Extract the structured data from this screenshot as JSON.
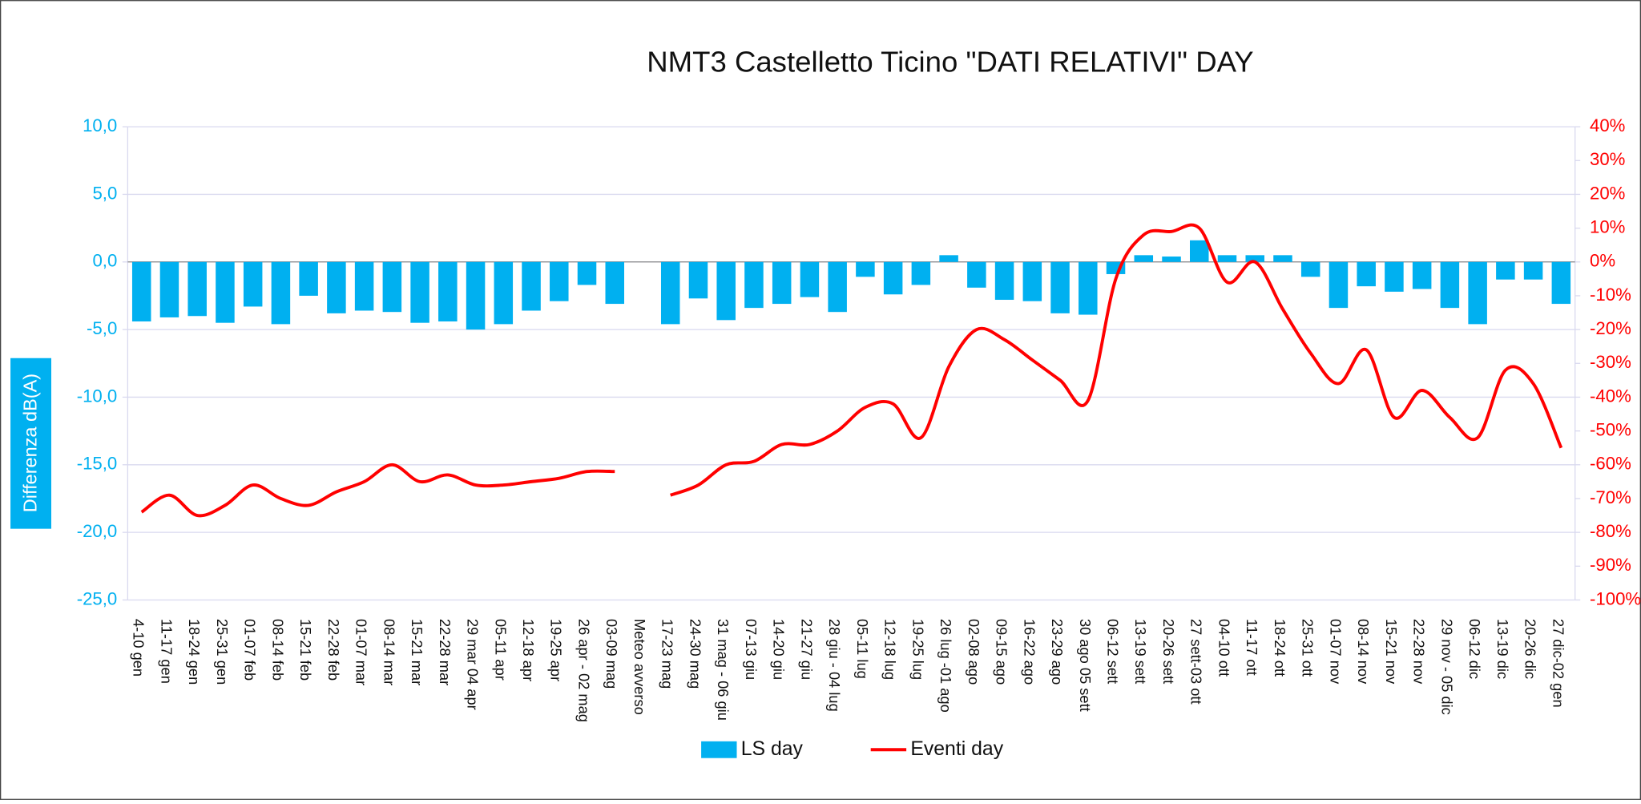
{
  "chart_data": {
    "type": "bar-line",
    "title": "NMT3 Castelletto Ticino \"DATI RELATIVI\" DAY",
    "y_label": "Differenza dB(A)",
    "categories": [
      "4-10 gen",
      "11-17 gen",
      "18-24 gen",
      "25-31 gen",
      "01-07 feb",
      "08-14 feb",
      "15-21 feb",
      "22-28 feb",
      "01-07 mar",
      "08-14 mar",
      "15-21 mar",
      "22-28 mar",
      "29 mar 04 apr",
      "05-11 apr",
      "12-18 apr",
      "19-25 apr",
      "26 apr - 02 mag",
      "03-09 mag",
      "Meteo avverso",
      "17-23 mag",
      "24-30 mag",
      "31 mag - 06 giu",
      "07-13 giu",
      "14-20 giu",
      "21-27 giu",
      "28 giu - 04 lug",
      "05-11 lug",
      "12-18 lug",
      "19-25 lug",
      "26 lug -01 ago",
      "02-08 ago",
      "09-15 ago",
      "16-22 ago",
      "23-29 ago",
      "30 ago 05 sett",
      "06-12  sett",
      "13-19 sett",
      "20-26 sett",
      "27 sett-03 ott",
      "04-10 ott",
      "11-17 ott",
      "18-24 ott",
      "25-31 ott",
      "01-07 nov",
      "08-14 nov",
      "15-21 nov",
      "22-28 nov",
      "29 nov - 05 dic",
      "06-12 dic",
      "13-19 dic",
      "20-26 dic",
      "27 dic-02 gen"
    ],
    "series": [
      {
        "name": "LS day",
        "color": "#00b0f0",
        "axis": "y",
        "kind": "bar",
        "values": [
          -4.4,
          -4.1,
          -4.0,
          -4.5,
          -3.3,
          -4.6,
          -2.5,
          -3.8,
          -3.6,
          -3.7,
          -4.5,
          -4.4,
          -5.0,
          -4.6,
          -3.6,
          -2.9,
          -1.7,
          -3.1,
          null,
          -4.6,
          -2.7,
          -4.3,
          -3.4,
          -3.1,
          -2.6,
          -3.7,
          -1.1,
          -2.4,
          -1.7,
          0.5,
          -1.9,
          -2.8,
          -2.9,
          -3.8,
          -3.9,
          -0.9,
          0.5,
          0.4,
          1.6,
          0.5,
          0.5,
          0.5,
          -1.1,
          -3.4,
          -1.8,
          -2.2,
          -2.0,
          -3.4,
          -4.6,
          -1.3,
          -1.3,
          -3.1
        ]
      },
      {
        "name": "Eventi day",
        "color": "#ff0000",
        "axis": "y2",
        "kind": "line",
        "values": [
          -74,
          -69,
          -75,
          -72,
          -66,
          -70,
          -72,
          -68,
          -65,
          -60,
          -65,
          -63,
          -66,
          -66,
          -65,
          -64,
          -62,
          -62,
          null,
          -69,
          -66,
          -60,
          -59,
          -54,
          -54,
          -50,
          -43,
          -42,
          -52,
          -31,
          -20,
          -23,
          -29,
          -35,
          -41,
          -5,
          8,
          9,
          10,
          -6,
          0,
          -14,
          -27,
          -36,
          -26,
          -46,
          -38,
          -46,
          -52,
          -32,
          -36,
          -55
        ]
      }
    ],
    "ylim": [
      -25,
      10
    ],
    "yticks": [
      {
        "value": -25,
        "label": "-25,0"
      },
      {
        "value": -20,
        "label": "-20,0"
      },
      {
        "value": -15,
        "label": "-15,0"
      },
      {
        "value": -10,
        "label": "-10,0"
      },
      {
        "value": -5,
        "label": "-5,0"
      },
      {
        "value": 0,
        "label": "0,0"
      },
      {
        "value": 5,
        "label": "5,0"
      },
      {
        "value": 10,
        "label": "10,0"
      }
    ],
    "y2lim": [
      -100,
      40
    ],
    "y2ticks": [
      {
        "value": -100,
        "label": "-100%"
      },
      {
        "value": -90,
        "label": "-90%"
      },
      {
        "value": -80,
        "label": "-80%"
      },
      {
        "value": -70,
        "label": "-70%"
      },
      {
        "value": -60,
        "label": "-60%"
      },
      {
        "value": -50,
        "label": "-50%"
      },
      {
        "value": -40,
        "label": "-40%"
      },
      {
        "value": -30,
        "label": "-30%"
      },
      {
        "value": -20,
        "label": "-20%"
      },
      {
        "value": -10,
        "label": "-10%"
      },
      {
        "value": 0,
        "label": "0%"
      },
      {
        "value": 10,
        "label": "10%"
      },
      {
        "value": 20,
        "label": "20%"
      },
      {
        "value": 30,
        "label": "30%"
      },
      {
        "value": 40,
        "label": "40%"
      }
    ],
    "grid": true,
    "legend": "bottom"
  }
}
